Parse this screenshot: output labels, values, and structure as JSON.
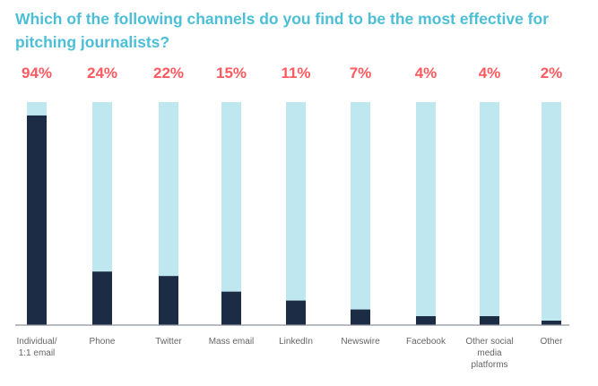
{
  "chart_data": {
    "type": "bar",
    "title": "Which of the following channels do you find to be the most effective for pitching journalists?",
    "categories": [
      "Individual/\n1:1 email",
      "Phone",
      "Twitter",
      "Mass email",
      "LinkedIn",
      "Newswire",
      "Facebook",
      "Other social\nmedia\nplatforms",
      "Other"
    ],
    "values": [
      94,
      24,
      22,
      15,
      11,
      7,
      4,
      4,
      2
    ],
    "value_labels": [
      "94%",
      "24%",
      "22%",
      "15%",
      "11%",
      "7%",
      "4%",
      "4%",
      "2%"
    ],
    "ylim": [
      0,
      100
    ],
    "grid": false,
    "colors": {
      "value": "#1b2c44",
      "background": "#bfe7ef",
      "title": "#4cbfd6",
      "data_label": "#ff5a5f"
    }
  }
}
